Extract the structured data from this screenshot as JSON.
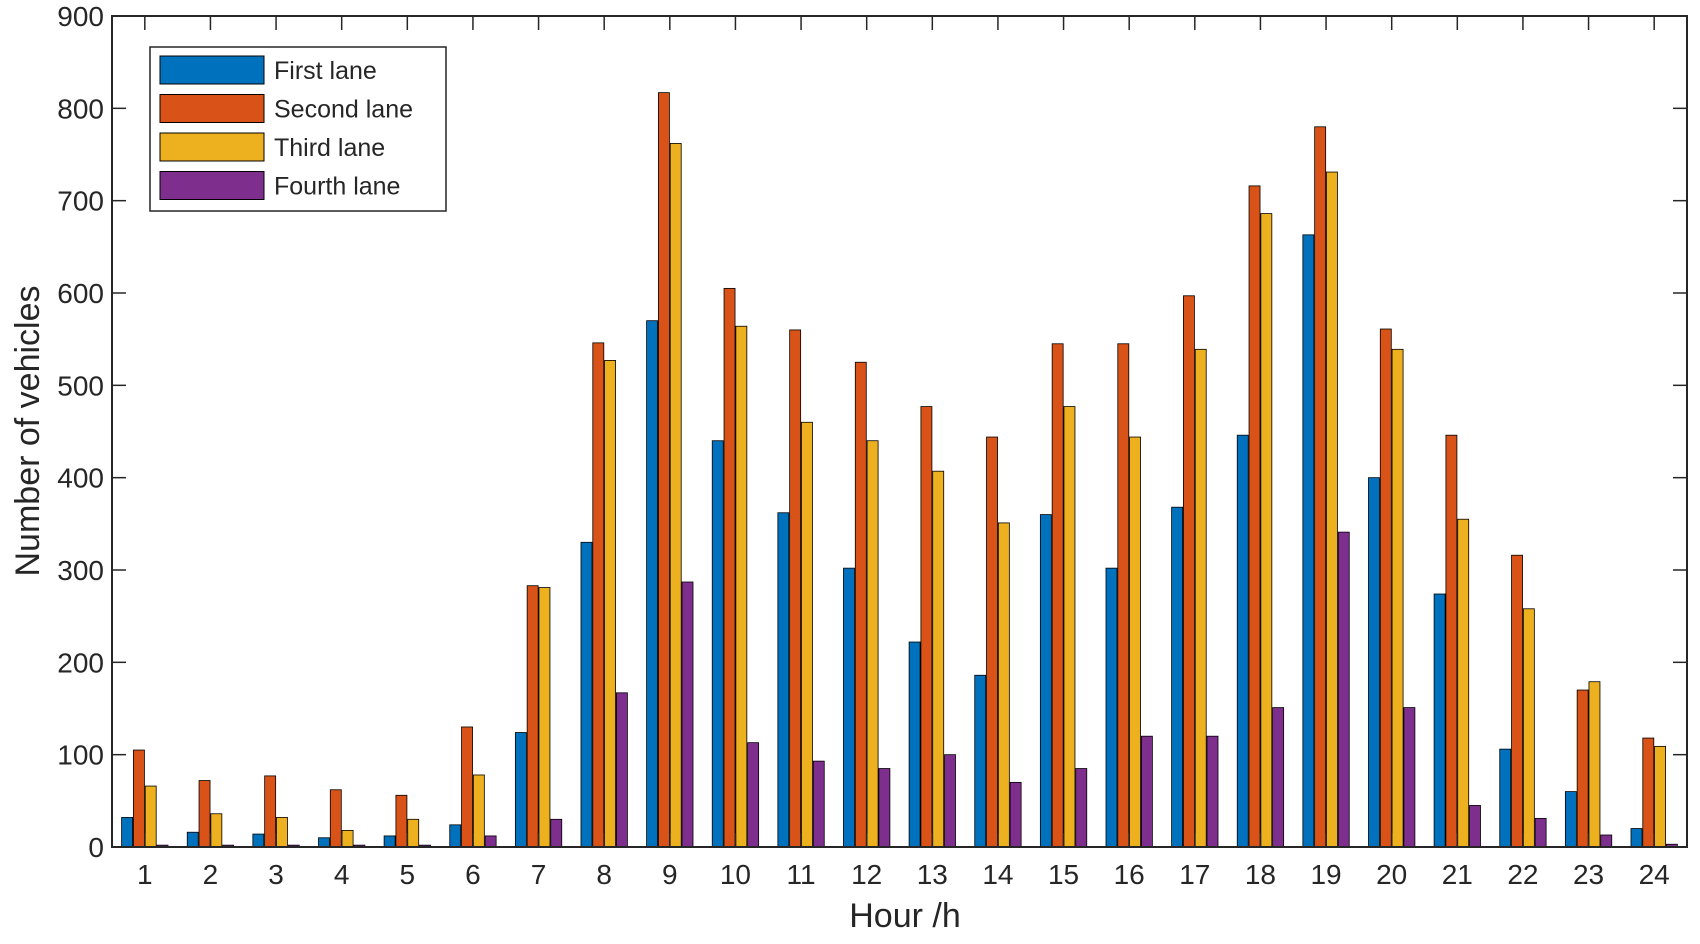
{
  "chart_data": {
    "type": "bar",
    "title": "",
    "xlabel": "Hour /h",
    "ylabel": "Number of vehicles",
    "ylim": [
      0,
      900
    ],
    "yticks": [
      0,
      100,
      200,
      300,
      400,
      500,
      600,
      700,
      800,
      900
    ],
    "grid": false,
    "legend_position": "top-left",
    "categories": [
      "1",
      "2",
      "3",
      "4",
      "5",
      "6",
      "7",
      "8",
      "9",
      "10",
      "11",
      "12",
      "13",
      "14",
      "15",
      "16",
      "17",
      "18",
      "19",
      "20",
      "21",
      "22",
      "23",
      "24"
    ],
    "series": [
      {
        "name": "First lane",
        "color": "#0072BD",
        "values": [
          32,
          16,
          14,
          10,
          12,
          24,
          124,
          330,
          570,
          440,
          362,
          302,
          222,
          186,
          360,
          302,
          368,
          446,
          663,
          400,
          274,
          106,
          60,
          20
        ]
      },
      {
        "name": "Second lane",
        "color": "#D95319",
        "values": [
          105,
          72,
          77,
          62,
          56,
          130,
          283,
          546,
          817,
          605,
          560,
          525,
          477,
          444,
          545,
          545,
          597,
          716,
          780,
          561,
          446,
          316,
          170,
          118
        ]
      },
      {
        "name": "Third lane",
        "color": "#EDB120",
        "values": [
          66,
          36,
          32,
          18,
          30,
          78,
          281,
          527,
          762,
          564,
          460,
          440,
          407,
          351,
          477,
          444,
          539,
          686,
          731,
          539,
          355,
          258,
          179,
          109
        ]
      },
      {
        "name": "Fourth lane",
        "color": "#7E2F8E",
        "values": [
          2,
          2,
          2,
          2,
          2,
          12,
          30,
          167,
          287,
          113,
          93,
          85,
          100,
          70,
          85,
          120,
          120,
          151,
          341,
          151,
          45,
          31,
          13,
          3
        ]
      }
    ]
  }
}
